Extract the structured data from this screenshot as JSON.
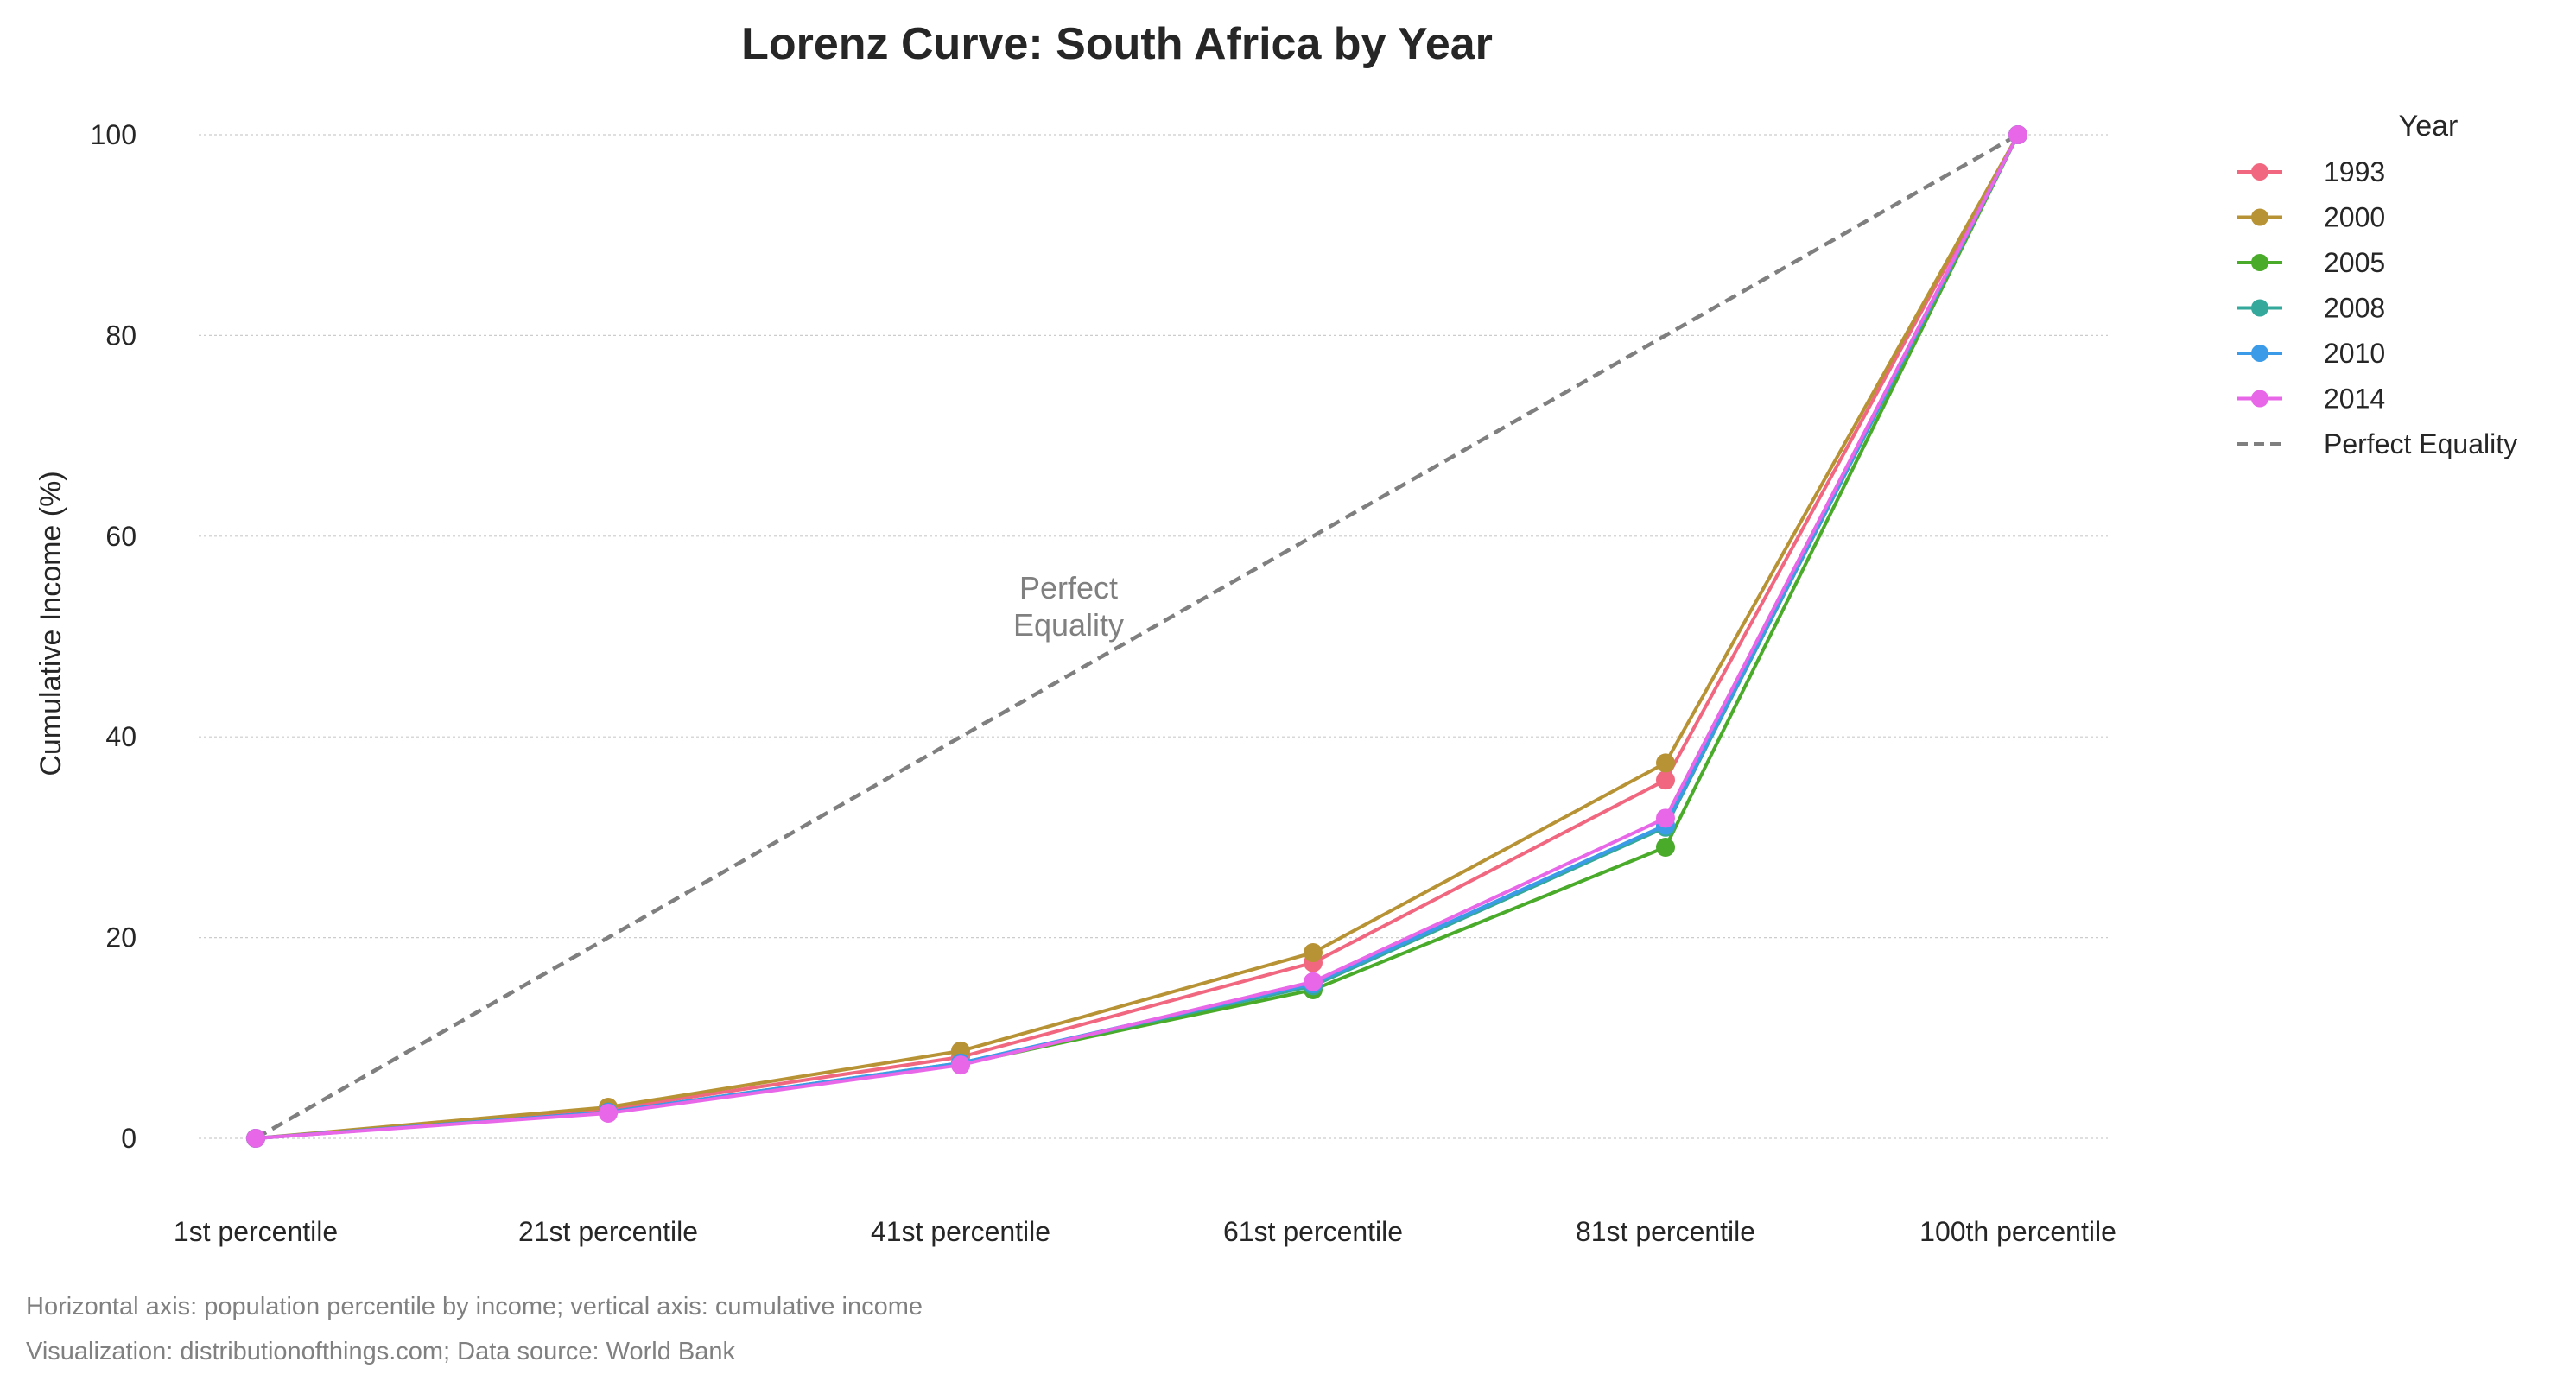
{
  "chart_data": {
    "type": "line",
    "title": "Lorenz Curve: South Africa by Year",
    "xlabel": "",
    "ylabel": "Cumulative Income (%)",
    "categories": [
      "1st percentile",
      "21st percentile",
      "41st percentile",
      "61st percentile",
      "81st percentile",
      "100th percentile"
    ],
    "yticks": [
      0,
      20,
      40,
      60,
      80,
      100
    ],
    "ylim": [
      -7,
      104
    ],
    "grid": true,
    "legend_title": "Year",
    "legend_position": "outside-right-top",
    "series": [
      {
        "name": "1993",
        "color": "#f0677f",
        "values": [
          0,
          2.9,
          8.1,
          17.5,
          35.7,
          100
        ]
      },
      {
        "name": "2000",
        "color": "#b89335",
        "values": [
          0,
          3.1,
          8.7,
          18.5,
          37.4,
          100
        ]
      },
      {
        "name": "2005",
        "color": "#4aab2b",
        "values": [
          0,
          2.6,
          7.4,
          14.8,
          29.0,
          100
        ]
      },
      {
        "name": "2008",
        "color": "#35a89c",
        "values": [
          0,
          2.6,
          7.5,
          15.2,
          31.0,
          100
        ]
      },
      {
        "name": "2010",
        "color": "#3b9be8",
        "values": [
          0,
          2.6,
          7.5,
          15.4,
          31.2,
          100
        ]
      },
      {
        "name": "2014",
        "color": "#e866e8",
        "values": [
          0,
          2.5,
          7.3,
          15.6,
          31.9,
          100
        ]
      }
    ],
    "reference_line": {
      "name": "Perfect Equality",
      "color": "#7f7f7f",
      "values": [
        0,
        20,
        40,
        60,
        80,
        100
      ]
    },
    "annotation": "Perfect\nEquality",
    "footnotes": [
      "Horizontal axis: population percentile by income; vertical axis: cumulative income",
      "Visualization: distributionofthings.com; Data source: World Bank"
    ]
  }
}
